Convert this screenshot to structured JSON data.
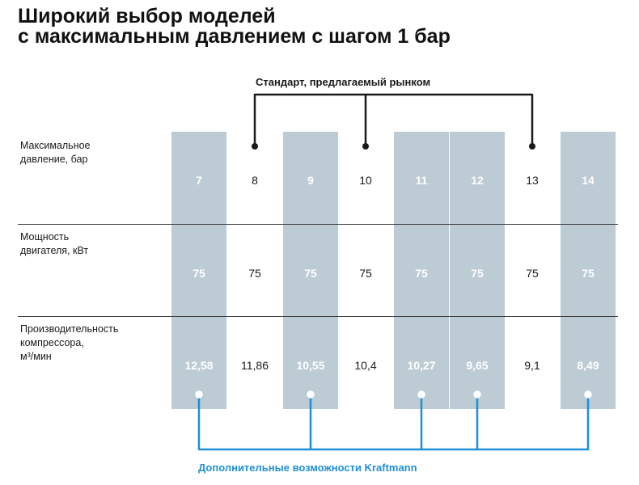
{
  "title": {
    "line1": "Широкий выбор моделей",
    "line2": "с максимальным давлением с шагом 1 бар"
  },
  "standard_label": "Стандарт, предлагаемый рынком",
  "kraftmann_label": "Дополнительные возможности Kraftmann",
  "rows": [
    {
      "label_lines": [
        "Максимальное",
        "давление, бар"
      ]
    },
    {
      "label_lines": [
        "Мощность",
        "двигателя, кВт"
      ]
    },
    {
      "label_lines": [
        "Производительность",
        "компрессора,",
        "м³/мин"
      ]
    }
  ],
  "models": [
    {
      "pressure": "7",
      "power": "75",
      "capacity": "12,58",
      "group": "kraftmann"
    },
    {
      "pressure": "8",
      "power": "75",
      "capacity": "11,86",
      "group": "standard"
    },
    {
      "pressure": "9",
      "power": "75",
      "capacity": "10,55",
      "group": "kraftmann"
    },
    {
      "pressure": "10",
      "power": "75",
      "capacity": "10,4",
      "group": "standard"
    },
    {
      "pressure": "11",
      "power": "75",
      "capacity": "10,27",
      "group": "kraftmann"
    },
    {
      "pressure": "12",
      "power": "75",
      "capacity": "9,65",
      "group": "kraftmann"
    },
    {
      "pressure": "13",
      "power": "75",
      "capacity": "9,1",
      "group": "standard"
    },
    {
      "pressure": "14",
      "power": "75",
      "capacity": "8,49",
      "group": "kraftmann"
    }
  ],
  "colors": {
    "highlight_column": "#bccbd4",
    "kraftmann_accent": "#1f8fd6",
    "standard_line": "#1a1a1a"
  }
}
